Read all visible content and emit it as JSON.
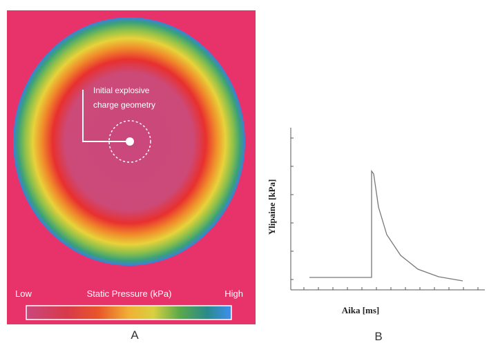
{
  "panel_a": {
    "annotation": [
      "Initial explosive",
      "charge geometry"
    ],
    "colorbar": {
      "low": "Low",
      "title": "Static Pressure (kPa)",
      "high": "High"
    },
    "caption": "A"
  },
  "panel_b": {
    "y_label": "Ylipaine [kPa]",
    "x_label": "Aika [ms]",
    "caption": "B"
  }
}
